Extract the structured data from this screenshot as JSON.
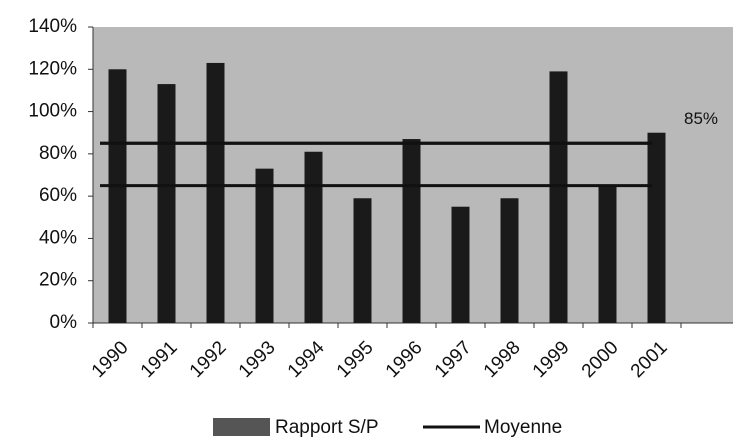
{
  "chart_data": {
    "type": "bar",
    "categories": [
      "1990",
      "1991",
      "1992",
      "1993",
      "1994",
      "1995",
      "1996",
      "1997",
      "1998",
      "1999",
      "2000",
      "2001"
    ],
    "series": [
      {
        "name": "Rapport S/P",
        "color": "#1a1a1a",
        "values": [
          120,
          113,
          123,
          73,
          81,
          59,
          87,
          55,
          59,
          119,
          65,
          90
        ]
      },
      {
        "name": "Moyenne",
        "color": "#111111",
        "values": [
          85,
          85,
          85,
          85,
          85,
          85,
          85,
          85,
          85,
          85,
          85,
          85
        ]
      }
    ],
    "reference_lines": [
      {
        "value": 85,
        "label": "85%"
      },
      {
        "value": 65
      }
    ],
    "ylim": [
      0,
      140
    ],
    "yticks": [
      {
        "value": 0,
        "label": "0%"
      },
      {
        "value": 20,
        "label": "20%"
      },
      {
        "value": 40,
        "label": "40%"
      },
      {
        "value": 60,
        "label": "60%"
      },
      {
        "value": 80,
        "label": "80%"
      },
      {
        "value": 100,
        "label": "100%"
      },
      {
        "value": 120,
        "label": "120%"
      },
      {
        "value": 140,
        "label": "140%"
      }
    ],
    "background": "#b9b9b9",
    "legend": "bottom"
  }
}
